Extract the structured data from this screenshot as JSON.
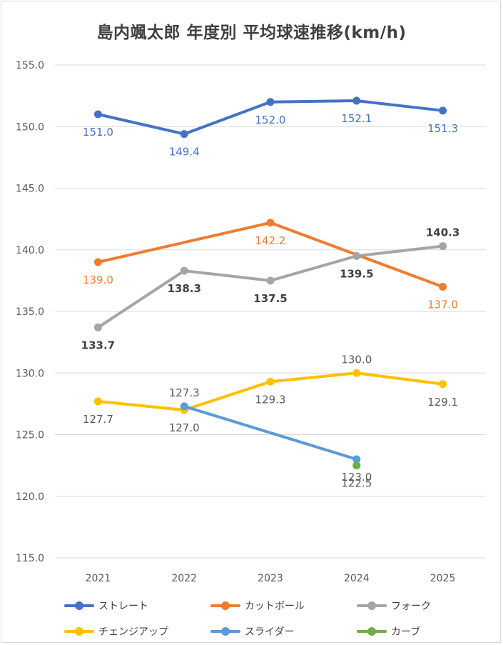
{
  "chart_data": {
    "type": "line",
    "title": "島内颯太郎 年度別 平均球速推移(km/h)",
    "xlabel": "",
    "ylabel": "",
    "categories": [
      "2021",
      "2022",
      "2023",
      "2024",
      "2025"
    ],
    "ylim": [
      115.0,
      155.0
    ],
    "yticks": [
      "115.0",
      "120.0",
      "125.0",
      "130.0",
      "135.0",
      "140.0",
      "145.0",
      "150.0",
      "155.0"
    ],
    "grid": "horizontal",
    "legend_position": "bottom",
    "series": [
      {
        "name": "ストレート",
        "color": "#4472C4",
        "label_color": "#4472C4",
        "label_bold": false,
        "values": [
          151.0,
          149.4,
          152.0,
          152.1,
          151.3
        ],
        "labels": [
          "151.0",
          "149.4",
          "152.0",
          "152.1",
          "151.3"
        ]
      },
      {
        "name": "カットボール",
        "color": "#ED7D31",
        "label_color": "#ED7D31",
        "label_bold": false,
        "values": [
          139.0,
          null,
          142.2,
          null,
          137.0
        ],
        "labels": [
          "139.0",
          "",
          "142.2",
          "",
          "137.0"
        ]
      },
      {
        "name": "フォーク",
        "color": "#A5A5A5",
        "label_color": "#404040",
        "label_bold": true,
        "values": [
          133.7,
          138.3,
          137.5,
          139.5,
          140.3
        ],
        "labels": [
          "133.7",
          "138.3",
          "137.5",
          "139.5",
          "140.3"
        ]
      },
      {
        "name": "チェンジアップ",
        "color": "#FFC000",
        "label_color": "#595959",
        "label_bold": false,
        "values": [
          127.7,
          127.0,
          129.3,
          130.0,
          129.1
        ],
        "labels": [
          "127.7",
          "127.0",
          "129.3",
          "130.0",
          "129.1"
        ]
      },
      {
        "name": "スライダー",
        "color": "#5B9BD5",
        "label_color": "#595959",
        "label_bold": false,
        "values": [
          null,
          127.3,
          null,
          123.0,
          null
        ],
        "labels": [
          "",
          "127.3",
          "",
          "123.0",
          ""
        ]
      },
      {
        "name": "カーブ",
        "color": "#70AD47",
        "label_color": "#595959",
        "label_bold": false,
        "values": [
          null,
          null,
          null,
          122.5,
          null
        ],
        "labels": [
          "",
          "",
          "",
          "122.5",
          ""
        ]
      }
    ]
  }
}
